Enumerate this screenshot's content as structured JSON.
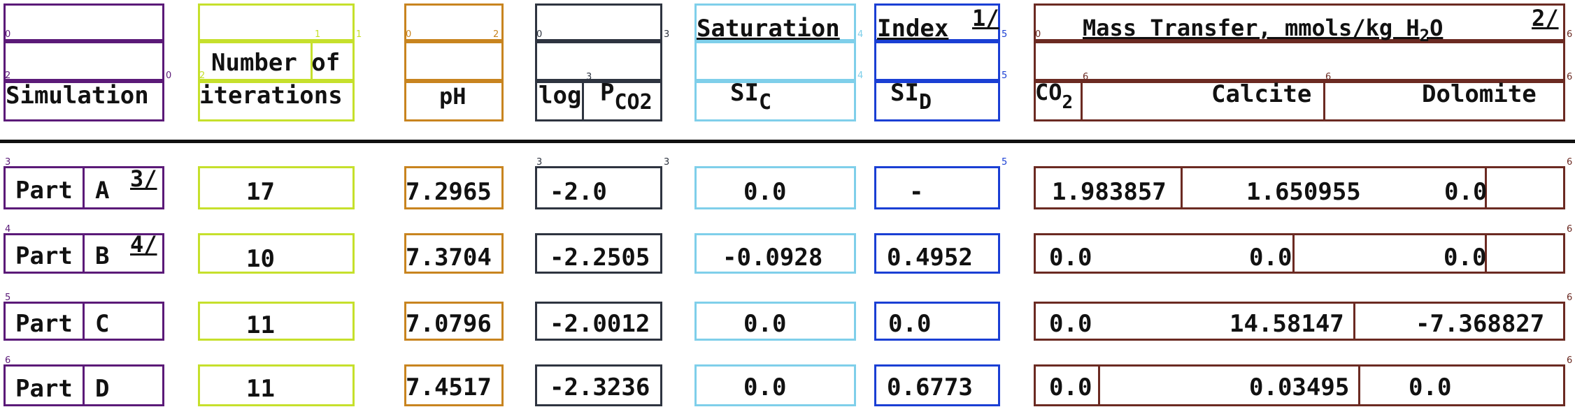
{
  "colors": {
    "purple": "#5b1a78",
    "lime": "#c6e02c",
    "orange": "#c8841f",
    "slate": "#2e3440",
    "skyblue": "#7fcfea",
    "blue": "#1a3fd4",
    "brown": "#6b2a22"
  },
  "header": {
    "simulation": "Simulation",
    "iterations_line1": "Number of",
    "iterations_line2": "iterations",
    "ph": "pH",
    "log": "log",
    "pco2_p": "P",
    "pco2_sub": "CO2",
    "saturation": "Saturation",
    "index": "Index",
    "note1": "1/",
    "sic": "SI",
    "sic_sub": "C",
    "sid": "SI",
    "sid_sub": "D",
    "mass_transfer": "Mass Transfer, mmols/kg H",
    "mass_sub": "2",
    "mass_o": "O",
    "note2": "2/",
    "co2": "CO",
    "co2_sub": "2",
    "calcite": "Calcite",
    "dolomite": "Dolomite"
  },
  "rows": [
    {
      "part": "Part",
      "letter": "A",
      "note": "3/",
      "iterations": "17",
      "ph": "7.2965",
      "log_pco2": "-2.0",
      "sic": "0.0",
      "sid": "-",
      "co2": "1.983857",
      "calcite": "1.650955",
      "dolomite": "0.0"
    },
    {
      "part": "Part",
      "letter": "B",
      "note": "4/",
      "iterations": "10",
      "ph": "7.3704",
      "log_pco2": "-2.2505",
      "sic": "-0.0928",
      "sid": "0.4952",
      "co2": "0.0",
      "calcite": "0.0",
      "dolomite": "0.0"
    },
    {
      "part": "Part",
      "letter": "C",
      "note": "",
      "iterations": "11",
      "ph": "7.0796",
      "log_pco2": "-2.0012",
      "sic": "0.0",
      "sid": "0.0",
      "co2": "0.0",
      "calcite": "14.58147",
      "dolomite": "-7.368827"
    },
    {
      "part": "Part",
      "letter": "D",
      "note": "",
      "iterations": "11",
      "ph": "7.4517",
      "log_pco2": "-2.3236",
      "sic": "0.0",
      "sid": "0.6773",
      "co2": "0.0",
      "calcite": "0.03495",
      "dolomite": "0.0"
    }
  ],
  "box_labels": {
    "n0": "0",
    "n1": "1",
    "n2": "2",
    "n3": "3",
    "n4": "4",
    "n5": "5",
    "n6": "6"
  }
}
